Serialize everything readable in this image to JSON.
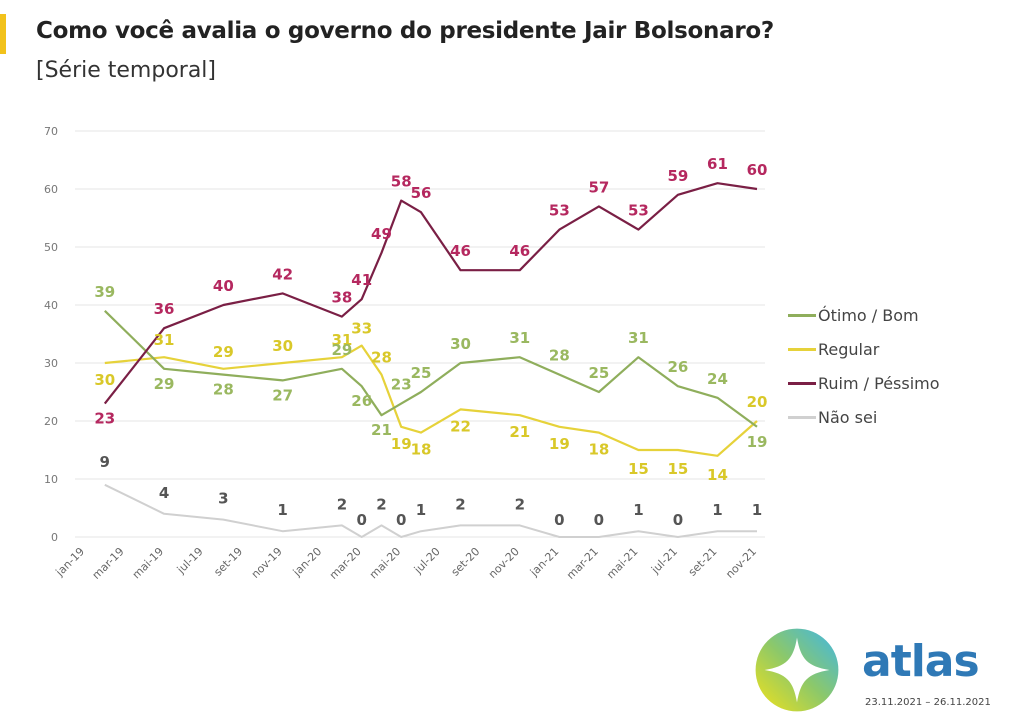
{
  "header": {
    "title": "Como você avalia o governo do presidente Jair Bolsonaro?",
    "subtitle": "[Série temporal]"
  },
  "branding": {
    "name": "atlas",
    "date_range": "23.11.2021 – 26.11.2021",
    "logo_icon": "compass-ring-icon"
  },
  "chart_data": {
    "type": "line",
    "title": "Como você avalia o governo do presidente Jair Bolsonaro?",
    "subtitle": "[Série temporal]",
    "xlabel": "",
    "ylabel": "",
    "ylim": [
      0,
      70
    ],
    "yticks": [
      0,
      10,
      20,
      30,
      40,
      50,
      60,
      70
    ],
    "grid": true,
    "legend_position": "right",
    "x_month_index_note": "months since jan-19",
    "xlim": [
      0,
      34
    ],
    "xticks": [
      {
        "m": 0,
        "label": "jan-19"
      },
      {
        "m": 2,
        "label": "mar-19"
      },
      {
        "m": 4,
        "label": "mai-19"
      },
      {
        "m": 6,
        "label": "jul-19"
      },
      {
        "m": 8,
        "label": "set-19"
      },
      {
        "m": 10,
        "label": "nov-19"
      },
      {
        "m": 12,
        "label": "jan-20"
      },
      {
        "m": 14,
        "label": "mar-20"
      },
      {
        "m": 16,
        "label": "mai-20"
      },
      {
        "m": 18,
        "label": "jul-20"
      },
      {
        "m": 20,
        "label": "set-20"
      },
      {
        "m": 22,
        "label": "nov-20"
      },
      {
        "m": 24,
        "label": "jan-21"
      },
      {
        "m": 26,
        "label": "mar-21"
      },
      {
        "m": 28,
        "label": "mai-21"
      },
      {
        "m": 30,
        "label": "jul-21"
      },
      {
        "m": 32,
        "label": "set-21"
      },
      {
        "m": 34,
        "label": "nov-21"
      }
    ],
    "x": [
      1,
      4,
      7,
      10,
      13,
      14,
      15,
      16,
      17,
      19,
      22,
      24,
      26,
      28,
      30,
      32,
      34
    ],
    "series": [
      {
        "name": "Ótimo / Bom",
        "color": "#8fae5c",
        "label_color": "#9ab860",
        "values": [
          39,
          29,
          28,
          27,
          29,
          26,
          21,
          23,
          25,
          30,
          31,
          28,
          25,
          31,
          26,
          24,
          19
        ]
      },
      {
        "name": "Regular",
        "color": "#e6d23a",
        "label_color": "#d9c829",
        "values": [
          30,
          31,
          29,
          30,
          31,
          33,
          28,
          19,
          18,
          22,
          21,
          19,
          18,
          15,
          15,
          14,
          20
        ]
      },
      {
        "name": "Ruim / Péssimo",
        "color": "#7a1f45",
        "label_color": "#b5285f",
        "values": [
          23,
          36,
          40,
          42,
          38,
          41,
          49,
          58,
          56,
          46,
          46,
          53,
          57,
          53,
          59,
          61,
          60
        ]
      },
      {
        "name": "Não sei",
        "color": "#d0d0d0",
        "label_color": "#555555",
        "values": [
          9,
          4,
          3,
          1,
          2,
          0,
          2,
          0,
          1,
          2,
          2,
          0,
          0,
          1,
          0,
          1,
          1
        ]
      }
    ]
  }
}
